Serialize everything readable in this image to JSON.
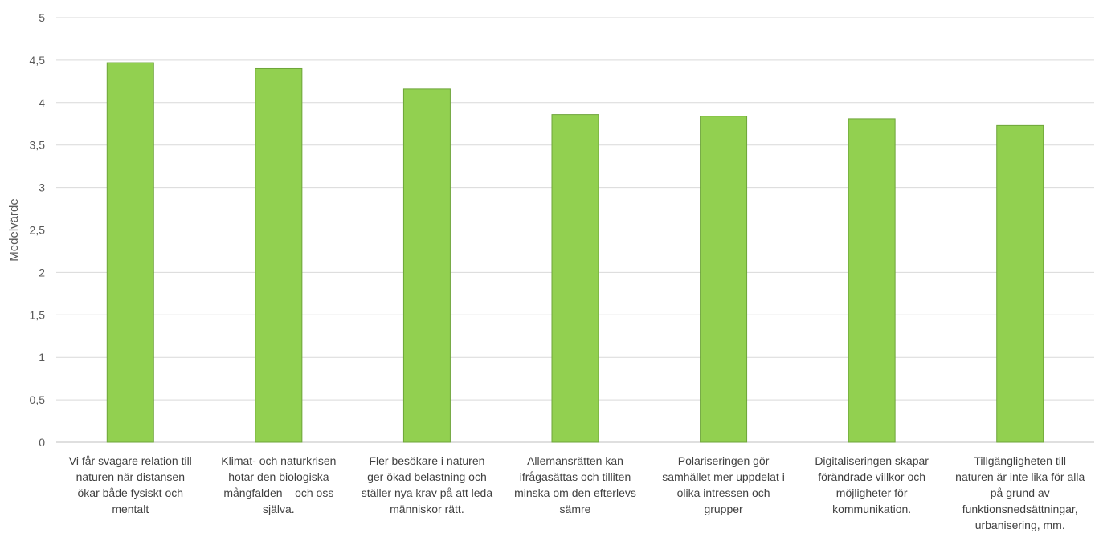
{
  "chart_data": {
    "type": "bar",
    "title": "",
    "xlabel": "",
    "ylabel": "Medelvärde",
    "ylim": [
      0,
      5
    ],
    "yticks": [
      "0",
      "0,5",
      "1",
      "1,5",
      "2",
      "2,5",
      "3",
      "3,5",
      "4",
      "4,5",
      "5"
    ],
    "grid": true,
    "legend": "none",
    "bar_color": "#92d050",
    "bar_edge_color": "#6ea53a",
    "categories": [
      [
        "Vi får svagare relation till",
        "naturen när distansen",
        "ökar både fysiskt och",
        "mentalt"
      ],
      [
        "Klimat- och naturkrisen",
        "hotar den biologiska",
        "mångfalden – och oss",
        "själva."
      ],
      [
        "Fler besökare i naturen",
        "ger ökad belastning och",
        "ställer nya krav på att leda",
        "människor rätt."
      ],
      [
        "Allemansrätten kan",
        "ifrågasättas och tilliten",
        "minska om den efterlevs",
        "sämre"
      ],
      [
        "Polariseringen gör",
        "samhället mer uppdelat i",
        "olika intressen och",
        "grupper"
      ],
      [
        "Digitaliseringen skapar",
        "förändrade villkor och",
        "möjligheter för",
        "kommunikation."
      ],
      [
        "Tillgängligheten till",
        "naturen är inte lika för alla",
        "på grund av",
        "funktionsnedsättningar,",
        "urbanisering, mm."
      ]
    ],
    "values": [
      4.47,
      4.4,
      4.16,
      3.86,
      3.84,
      3.81,
      3.73
    ]
  }
}
